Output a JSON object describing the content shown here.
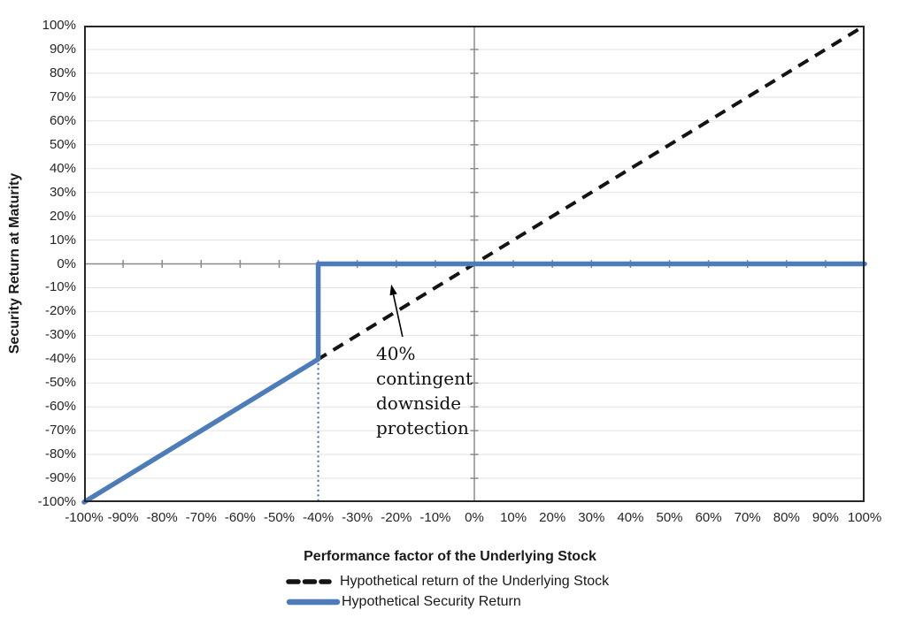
{
  "chart_data": {
    "type": "line",
    "title": "",
    "xlabel": "Performance factor of the Underlying Stock",
    "ylabel": "Security Return at Maturity",
    "xlim": [
      -100,
      100
    ],
    "ylim": [
      -100,
      100
    ],
    "tick_step": 10,
    "grid": "horizontal-only",
    "legend_position": "bottom-left",
    "x_ticks": [
      {
        "value": -100,
        "label": "-100%"
      },
      {
        "value": -90,
        "label": "-90%"
      },
      {
        "value": -80,
        "label": "-80%"
      },
      {
        "value": -70,
        "label": "-70%"
      },
      {
        "value": -60,
        "label": "-60%"
      },
      {
        "value": -50,
        "label": "-50%"
      },
      {
        "value": -40,
        "label": "-40%"
      },
      {
        "value": -30,
        "label": "-30%"
      },
      {
        "value": -20,
        "label": "-20%"
      },
      {
        "value": -10,
        "label": "-10%"
      },
      {
        "value": 0,
        "label": "0%"
      },
      {
        "value": 10,
        "label": "10%"
      },
      {
        "value": 20,
        "label": "20%"
      },
      {
        "value": 30,
        "label": "30%"
      },
      {
        "value": 40,
        "label": "40%"
      },
      {
        "value": 50,
        "label": "50%"
      },
      {
        "value": 60,
        "label": "60%"
      },
      {
        "value": 70,
        "label": "70%"
      },
      {
        "value": 80,
        "label": "80%"
      },
      {
        "value": 90,
        "label": "90%"
      },
      {
        "value": 100,
        "label": "100%"
      }
    ],
    "y_ticks": [
      {
        "value": 100,
        "label": "100%"
      },
      {
        "value": 90,
        "label": "90%"
      },
      {
        "value": 80,
        "label": "80%"
      },
      {
        "value": 70,
        "label": "70%"
      },
      {
        "value": 60,
        "label": "60%"
      },
      {
        "value": 50,
        "label": "50%"
      },
      {
        "value": 40,
        "label": "40%"
      },
      {
        "value": 30,
        "label": "30%"
      },
      {
        "value": 20,
        "label": "20%"
      },
      {
        "value": 10,
        "label": "10%"
      },
      {
        "value": 0,
        "label": "0%"
      },
      {
        "value": -10,
        "label": "-10%"
      },
      {
        "value": -20,
        "label": "-20%"
      },
      {
        "value": -30,
        "label": "-30%"
      },
      {
        "value": -40,
        "label": "-40%"
      },
      {
        "value": -50,
        "label": "-50%"
      },
      {
        "value": -60,
        "label": "-60%"
      },
      {
        "value": -70,
        "label": "-70%"
      },
      {
        "value": -80,
        "label": "-80%"
      },
      {
        "value": -90,
        "label": "-90%"
      },
      {
        "value": -100,
        "label": "-100%"
      }
    ],
    "series": [
      {
        "name": "Hypothetical return of the Underlying Stock",
        "style": "dashed",
        "color": "#141414",
        "points": [
          [
            -100,
            -100
          ],
          [
            100,
            100
          ]
        ]
      },
      {
        "name": "Hypothetical Security Return",
        "style": "solid",
        "color": "#4e7cb8",
        "points": [
          [
            -100,
            -100
          ],
          [
            -40,
            -40
          ],
          [
            -40,
            0
          ],
          [
            100,
            0
          ]
        ]
      }
    ],
    "drop_line": {
      "style": "dotted",
      "color": "#4e7cb8",
      "points": [
        [
          -40,
          -40
        ],
        [
          -40,
          -100
        ]
      ]
    },
    "annotation": {
      "text": "40%\ncontingent\ndownside\nprotection",
      "arrow_from": [
        -18.4,
        -30.6
      ],
      "arrow_to": [
        -21.3,
        -8.6
      ]
    },
    "colors": {
      "axis": "#8a8a8a",
      "gridline": "#e2e2e2",
      "border": "#262626",
      "background": "#ffffff"
    }
  }
}
